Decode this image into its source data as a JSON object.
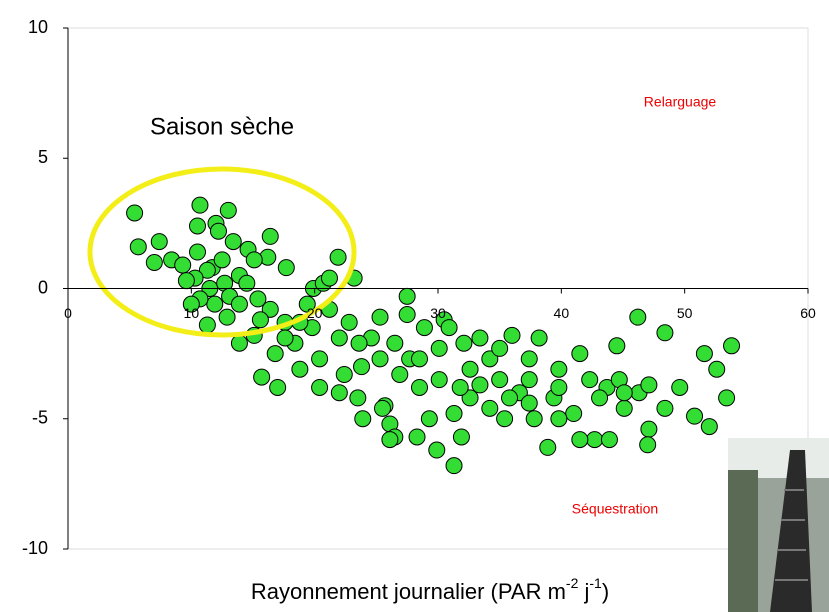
{
  "chart_data": {
    "type": "scatter",
    "annotation": "Saison sèche",
    "label_top": "Relarguage",
    "label_bottom": "Séquestration",
    "x_label": [
      "Rayonnement journalier (PAR m",
      "-2",
      " j",
      "-1",
      ")"
    ],
    "xlim": [
      0,
      60
    ],
    "xticks": [
      0,
      10,
      20,
      30,
      40,
      50,
      60
    ],
    "ylim": [
      -10,
      10
    ],
    "yticks": [
      -10,
      -5,
      0,
      5,
      10
    ],
    "color": "#33dd33",
    "x": [
      5.4,
      5.7,
      7.4,
      7.0,
      8.4,
      10.7,
      10.5,
      12.0,
      13.0,
      12.2,
      13.4,
      14.6,
      16.4,
      16.2,
      15.1,
      17.7,
      10.5,
      9.3,
      11.7,
      12.5,
      11.3,
      10.3,
      9.6,
      11.5,
      12.7,
      13.9,
      14.5,
      13.1,
      11.9,
      10.7,
      10.0,
      11.3,
      12.9,
      13.9,
      15.4,
      16.4,
      15.6,
      13.9,
      17.6,
      19.4,
      19.9,
      20.7,
      21.2,
      21.9,
      23.2,
      21.2,
      19.8,
      18.4,
      16.8,
      15.7,
      17.0,
      18.8,
      20.4,
      22.0,
      20.4,
      22.4,
      22.0,
      23.8,
      23.5,
      23.9,
      25.7,
      26.1,
      25.5,
      26.5,
      26.1,
      28.3,
      29.9,
      31.3,
      31.9,
      29.3,
      27.5,
      27.5,
      25.3,
      24.6,
      26.5,
      27.7,
      28.9,
      30.5,
      30.9,
      30.1,
      32.1,
      33.4,
      32.6,
      34.2,
      35.0,
      36.0,
      38.2,
      37.4,
      36.6,
      34.2,
      32.6,
      31.3,
      35.4,
      37.8,
      38.9,
      39.4,
      39.8,
      41.5,
      42.3,
      41.0,
      42.7,
      43.9,
      44.5,
      43.7,
      45.1,
      46.3,
      46.2,
      48.4,
      47.1,
      48.4,
      49.6,
      50.8,
      51.6,
      52.6,
      53.4,
      53.8,
      52.0,
      47.0,
      41.5,
      39.8,
      37.4,
      35.8,
      33.4,
      31.8,
      30.1,
      28.5,
      26.9,
      25.3,
      23.6,
      22.8,
      18.8,
      17.6,
      15.1,
      44.7,
      47.1,
      39.8,
      43.1,
      45.1,
      28.5,
      35.0,
      37.4
    ],
    "y": [
      2.9,
      1.6,
      1.8,
      1.0,
      1.1,
      3.2,
      2.4,
      2.5,
      3.0,
      2.2,
      1.8,
      1.5,
      2.0,
      1.2,
      1.1,
      0.8,
      1.4,
      0.9,
      0.8,
      1.1,
      0.7,
      0.4,
      0.3,
      0.0,
      0.2,
      0.5,
      0.2,
      -0.3,
      -0.6,
      -0.4,
      -0.6,
      -1.4,
      -1.1,
      -0.6,
      -0.4,
      -0.8,
      -1.2,
      -2.1,
      -1.3,
      -0.6,
      0.0,
      0.2,
      0.4,
      1.2,
      0.4,
      -0.8,
      -1.5,
      -2.1,
      -2.5,
      -3.4,
      -3.8,
      -3.1,
      -2.7,
      -1.9,
      -3.8,
      -3.3,
      -4.0,
      -3.0,
      -4.2,
      -5.0,
      -4.5,
      -5.2,
      -4.6,
      -5.7,
      -5.8,
      -5.7,
      -6.2,
      -6.8,
      -5.7,
      -5.0,
      -0.3,
      -1.0,
      -1.1,
      -1.9,
      -2.1,
      -2.7,
      -1.5,
      -1.2,
      -1.5,
      -2.3,
      -2.1,
      -1.9,
      -3.1,
      -2.7,
      -3.5,
      -1.8,
      -1.9,
      -2.7,
      -4.0,
      -4.6,
      -4.2,
      -4.8,
      -5.0,
      -5.0,
      -6.1,
      -4.2,
      -3.1,
      -2.5,
      -3.5,
      -4.8,
      -5.8,
      -5.8,
      -2.2,
      -3.8,
      -4.6,
      -4.0,
      -1.1,
      -1.7,
      -5.4,
      -4.6,
      -3.8,
      -4.9,
      -2.5,
      -3.1,
      -4.2,
      -2.2,
      -5.3,
      -6.0,
      -5.8,
      -5.0,
      -4.4,
      -4.2,
      -3.7,
      -3.8,
      -3.5,
      -3.8,
      -3.3,
      -2.7,
      -2.1,
      -1.3,
      -1.3,
      -1.9,
      -1.8,
      -3.5,
      -3.7,
      -3.8,
      -4.2,
      -4.0,
      -2.7,
      -2.3,
      -3.5
    ]
  }
}
